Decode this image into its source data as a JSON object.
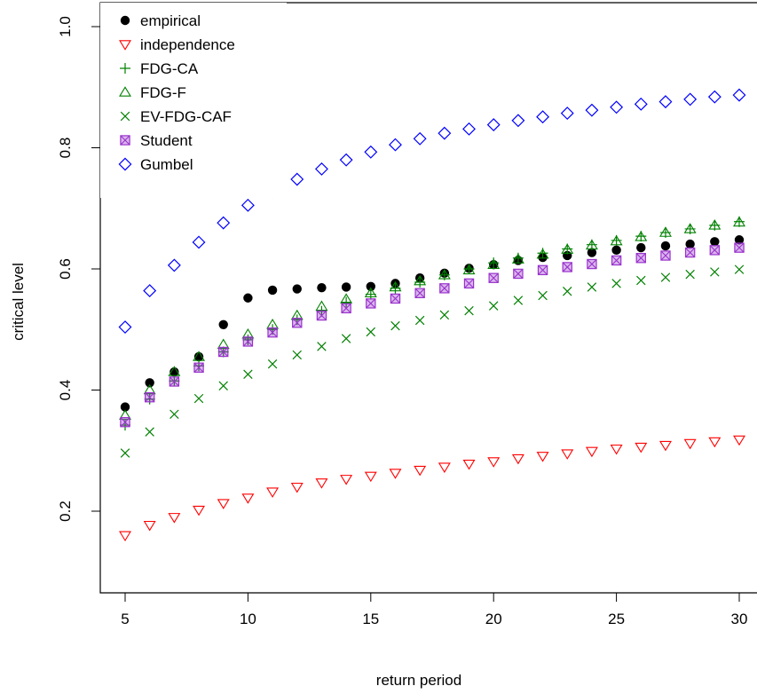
{
  "chart_data": {
    "type": "scatter",
    "xlabel": "return period",
    "ylabel": "critical level",
    "xlim": [
      4.5,
      30.6
    ],
    "ylim": [
      0.08,
      1.02
    ],
    "xticks": [
      5,
      10,
      15,
      20,
      25,
      30
    ],
    "yticks": [
      0.2,
      0.4,
      0.6,
      0.8,
      1.0
    ],
    "ytick_labels": [
      "0.2",
      "0.4",
      "0.6",
      "0.8",
      "1.0"
    ],
    "legend_position": "top-left",
    "x": [
      5,
      6,
      7,
      8,
      9,
      10,
      11,
      12,
      13,
      14,
      15,
      16,
      17,
      18,
      19,
      20,
      21,
      22,
      23,
      24,
      25,
      26,
      27,
      28,
      29,
      30
    ],
    "series": [
      {
        "name": "empirical",
        "marker": "filled-circle",
        "color": "#000000",
        "values": [
          0.372,
          0.412,
          0.43,
          0.455,
          0.508,
          0.552,
          0.565,
          0.567,
          0.569,
          0.57,
          0.571,
          0.576,
          0.585,
          0.593,
          0.601,
          0.607,
          0.614,
          0.619,
          0.622,
          0.627,
          0.631,
          0.635,
          0.638,
          0.641,
          0.645,
          0.648
        ]
      },
      {
        "name": "independence",
        "marker": "triangle-down",
        "color": "#ff0000",
        "values": [
          0.16,
          0.177,
          0.19,
          0.202,
          0.213,
          0.222,
          0.232,
          0.24,
          0.247,
          0.253,
          0.258,
          0.263,
          0.268,
          0.273,
          0.278,
          0.282,
          0.287,
          0.291,
          0.295,
          0.299,
          0.303,
          0.306,
          0.309,
          0.312,
          0.315,
          0.318
        ]
      },
      {
        "name": "FDG-CA",
        "marker": "plus",
        "color": "#008000",
        "values": [
          0.342,
          0.385,
          0.415,
          0.44,
          0.463,
          0.483,
          0.5,
          0.516,
          0.53,
          0.545,
          0.558,
          0.568,
          0.578,
          0.59,
          0.6,
          0.61,
          0.618,
          0.626,
          0.633,
          0.64,
          0.647,
          0.654,
          0.66,
          0.666,
          0.672,
          0.678
        ]
      },
      {
        "name": "FDG-F",
        "marker": "triangle-up",
        "color": "#008000",
        "values": [
          0.358,
          0.4,
          0.43,
          0.455,
          0.475,
          0.492,
          0.508,
          0.523,
          0.538,
          0.55,
          0.56,
          0.57,
          0.58,
          0.59,
          0.598,
          0.607,
          0.616,
          0.624,
          0.632,
          0.639,
          0.646,
          0.653,
          0.66,
          0.666,
          0.672,
          0.677
        ]
      },
      {
        "name": "EV-FDG-CAF",
        "marker": "cross",
        "color": "#008000",
        "values": [
          0.296,
          0.331,
          0.36,
          0.386,
          0.407,
          0.426,
          0.443,
          0.458,
          0.472,
          0.485,
          0.496,
          0.506,
          0.515,
          0.524,
          0.531,
          0.539,
          0.548,
          0.556,
          0.563,
          0.57,
          0.576,
          0.581,
          0.586,
          0.591,
          0.595,
          0.599
        ]
      },
      {
        "name": "Student",
        "marker": "square-x",
        "color": "#9932cc",
        "values": [
          0.347,
          0.388,
          0.414,
          0.437,
          0.463,
          0.48,
          0.495,
          0.511,
          0.523,
          0.535,
          0.543,
          0.551,
          0.56,
          0.568,
          0.576,
          0.585,
          0.592,
          0.598,
          0.603,
          0.608,
          0.614,
          0.618,
          0.622,
          0.627,
          0.631,
          0.635
        ]
      },
      {
        "name": "Gumbel",
        "marker": "diamond",
        "color": "#0000ff",
        "values": [
          0.504,
          0.564,
          0.606,
          0.644,
          0.676,
          0.705,
          0.728,
          0.748,
          0.765,
          0.78,
          0.793,
          0.805,
          0.815,
          0.824,
          0.831,
          0.838,
          0.845,
          0.851,
          0.857,
          0.862,
          0.867,
          0.872,
          0.876,
          0.88,
          0.884,
          0.887
        ]
      }
    ]
  }
}
